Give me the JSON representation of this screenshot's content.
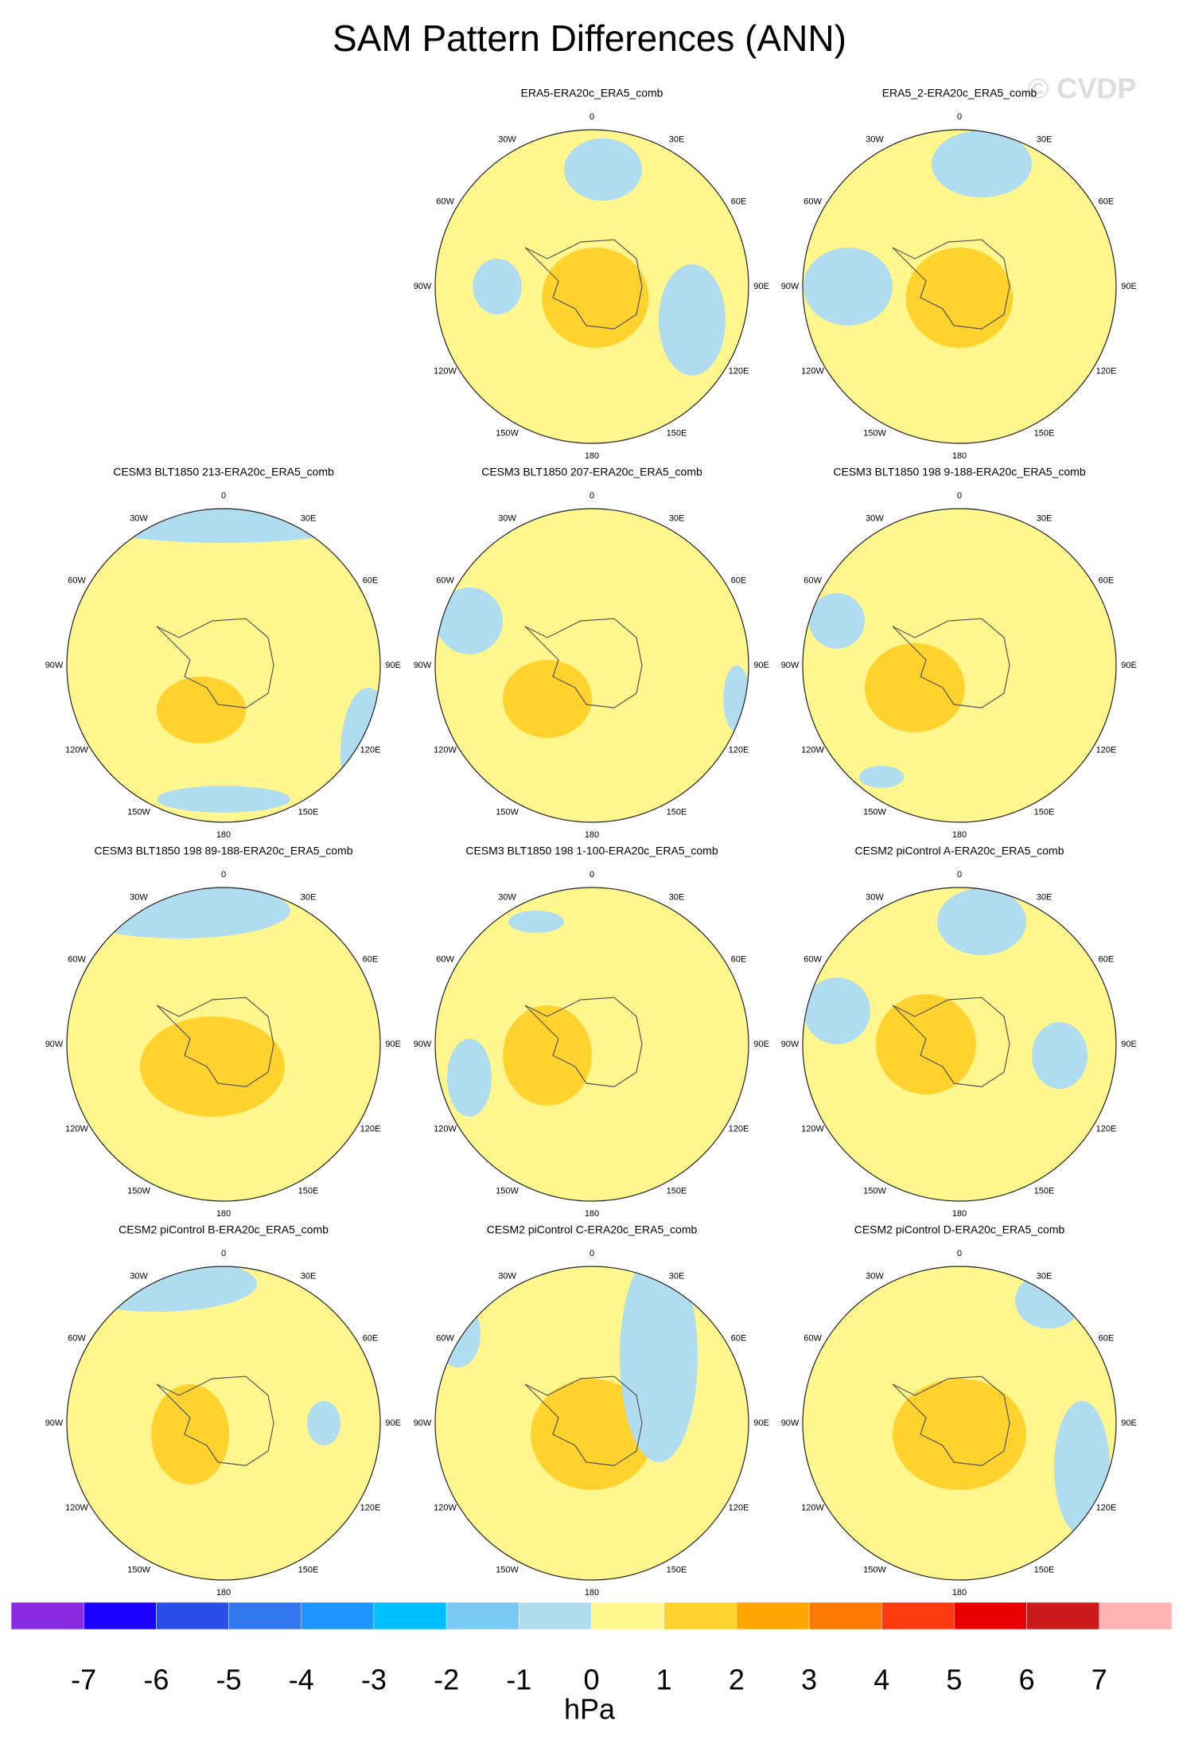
{
  "title": "SAM Pattern Differences (ANN)",
  "watermark": "© CVDP",
  "panels": [
    {
      "title": "ERA5-ERA20c_ERA5_comb"
    },
    {
      "title": "ERA5_2-ERA20c_ERA5_comb"
    },
    {
      "title": "CESM3 BLT1850 213-ERA20c_ERA5_comb"
    },
    {
      "title": "CESM3 BLT1850 207-ERA20c_ERA5_comb"
    },
    {
      "title": "CESM3 BLT1850 198 9-188-ERA20c_ERA5_comb"
    },
    {
      "title": "CESM3 BLT1850 198 89-188-ERA20c_ERA5_comb"
    },
    {
      "title": "CESM3 BLT1850 198 1-100-ERA20c_ERA5_comb"
    },
    {
      "title": "CESM2 piControl A-ERA20c_ERA5_comb"
    },
    {
      "title": "CESM2 piControl B-ERA20c_ERA5_comb"
    },
    {
      "title": "CESM2 piControl C-ERA20c_ERA5_comb"
    },
    {
      "title": "CESM2 piControl D-ERA20c_ERA5_comb"
    }
  ],
  "lon_labels": [
    "0",
    "30E",
    "60E",
    "90E",
    "120E",
    "150E",
    "180",
    "150W",
    "120W",
    "90W",
    "60W",
    "30W"
  ],
  "colorbar": {
    "colors": [
      "#8a2be2",
      "#1a00ff",
      "#2a4ee8",
      "#3377ee",
      "#1e96ff",
      "#00bfff",
      "#79c9f2",
      "#b0dcf0",
      "#fff78e",
      "#ffd22e",
      "#ffa500",
      "#ff7a00",
      "#ff3a10",
      "#e80000",
      "#cc1a1a",
      "#ffb4b4"
    ],
    "labels": [
      "-7",
      "-6",
      "-5",
      "-4",
      "-3",
      "-2",
      "-1",
      "0",
      "1",
      "2",
      "3",
      "4",
      "5",
      "6",
      "7"
    ],
    "unit": "hPa"
  }
}
